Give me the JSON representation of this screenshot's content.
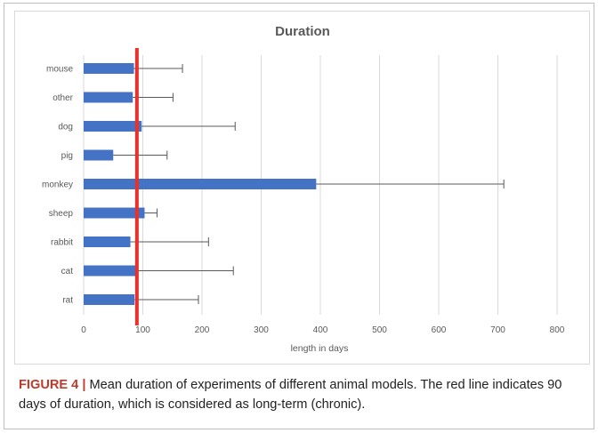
{
  "chart_data": {
    "type": "bar",
    "orientation": "horizontal",
    "title": "Duration",
    "xlabel": "length in days",
    "ylabel": "",
    "categories": [
      "mouse",
      "other",
      "dog",
      "pig",
      "monkey",
      "sheep",
      "rabbit",
      "cat",
      "rat"
    ],
    "series": [
      {
        "values": [
          85,
          83,
          98,
          50,
          393,
          103,
          79,
          89,
          86
        ],
        "error_upper": [
          167,
          151,
          256,
          141,
          710,
          124,
          211,
          253,
          194
        ]
      }
    ],
    "xlim": [
      0,
      800
    ],
    "xticks": [
      0,
      100,
      200,
      300,
      400,
      500,
      600,
      700,
      800
    ],
    "reference_line": {
      "x": 90
    },
    "grid": "vertical",
    "legend": "none",
    "colors": {
      "bar": "#4472c4",
      "reference_line": "#e8312a",
      "grid": "#d9d9d9",
      "error_bar": "#595959"
    }
  },
  "caption": {
    "label": "FIGURE 4 |",
    "text": " Mean duration of experiments of different animal models. The red line indicates 90 days of duration, which is considered as long-term (chronic)."
  }
}
